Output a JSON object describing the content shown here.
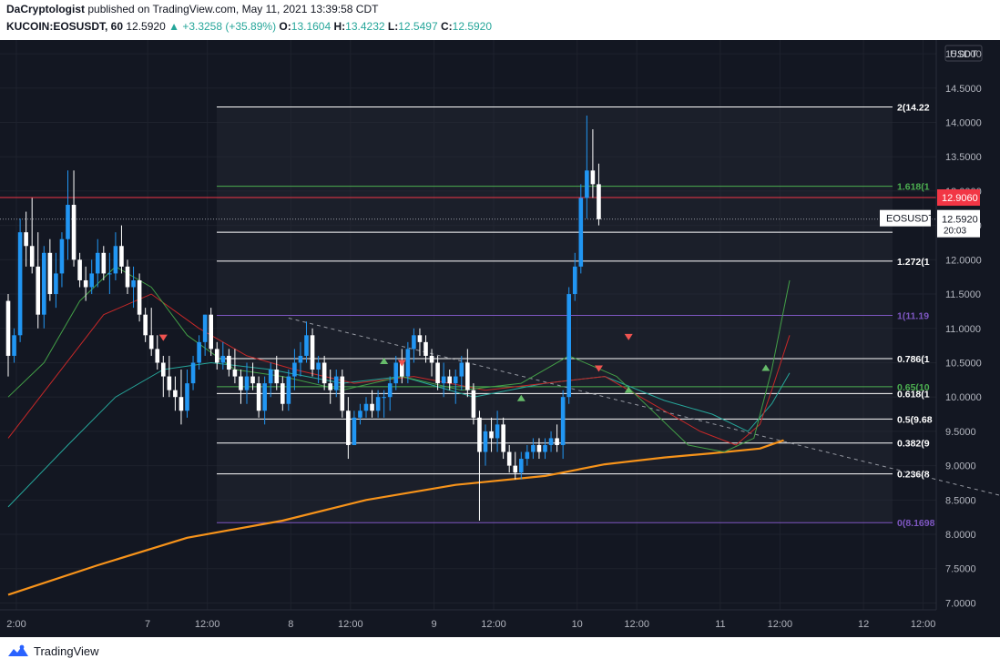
{
  "header": {
    "author": "DaCryptologist",
    "published_text": "published on TradingView.com, May 11, 2021 13:39:58 CDT",
    "symbol_line": "KUCOIN:EOSUSDT, 60",
    "last": "12.5920",
    "change": "▲ +3.3258 (+35.89%)",
    "o_label": "O:",
    "o": "13.1604",
    "h_label": "H:",
    "h": "13.4232",
    "l_label": "L:",
    "l": "12.5497",
    "c_label": "C:",
    "c": "12.5920"
  },
  "footer": {
    "brand": "TradingView"
  },
  "colors": {
    "bg": "#131722",
    "candle_up": "#2196f3",
    "candle_down": "#ffffff",
    "fib_white": "#ffffff",
    "fib_green": "#4caf50",
    "fib_purple": "#7e57c2",
    "red_line": "#f23645",
    "ma_slow": "#f7931a",
    "ma_fast": "#43a047",
    "ma_mid": "#c62828",
    "ma_teal": "#26a69a"
  },
  "chart_data": {
    "type": "candlestick",
    "symbol": "EOSUSDT",
    "axis_unit": "USDT",
    "ylim": [
      6.9,
      15.2
    ],
    "y_ticks": [
      "7.0000",
      "7.5000",
      "8.0000",
      "8.5000",
      "9.0000",
      "9.5000",
      "10.0000",
      "10.5000",
      "11.0000",
      "11.5000",
      "12.0000",
      "12.5000",
      "13.0000",
      "13.5000",
      "14.0000",
      "14.5000",
      "15.0000"
    ],
    "x_ticks": [
      {
        "label": "2:00",
        "t": 0
      },
      {
        "label": "7",
        "t": 22
      },
      {
        "label": "12:00",
        "t": 32
      },
      {
        "label": "8",
        "t": 46
      },
      {
        "label": "12:00",
        "t": 56
      },
      {
        "label": "9",
        "t": 70
      },
      {
        "label": "12:00",
        "t": 80
      },
      {
        "label": "10",
        "t": 94
      },
      {
        "label": "12:00",
        "t": 104
      },
      {
        "label": "11",
        "t": 118
      },
      {
        "label": "12:00",
        "t": 128
      },
      {
        "label": "12",
        "t": 142
      },
      {
        "label": "12:00",
        "t": 152
      }
    ],
    "candles": [
      [
        11.4,
        11.5,
        10.3,
        10.6
      ],
      [
        10.6,
        11.0,
        10.5,
        10.9
      ],
      [
        10.9,
        12.6,
        10.8,
        12.4
      ],
      [
        12.4,
        12.7,
        11.9,
        12.2
      ],
      [
        12.2,
        12.9,
        11.8,
        11.9
      ],
      [
        11.9,
        12.4,
        11.0,
        11.2
      ],
      [
        11.2,
        12.2,
        11.0,
        12.1
      ],
      [
        12.1,
        12.3,
        11.4,
        11.5
      ],
      [
        11.5,
        12.1,
        11.3,
        11.8
      ],
      [
        11.8,
        12.4,
        11.6,
        12.3
      ],
      [
        12.3,
        13.3,
        12.0,
        12.8
      ],
      [
        12.8,
        13.3,
        11.9,
        12.0
      ],
      [
        12.0,
        12.1,
        11.6,
        11.7
      ],
      [
        11.7,
        11.9,
        11.4,
        11.6
      ],
      [
        11.6,
        12.0,
        11.5,
        11.8
      ],
      [
        11.8,
        12.3,
        11.6,
        12.1
      ],
      [
        12.1,
        12.2,
        11.7,
        11.8
      ],
      [
        11.8,
        12.1,
        11.5,
        11.8
      ],
      [
        11.8,
        12.4,
        11.7,
        12.2
      ],
      [
        12.2,
        12.5,
        11.8,
        11.9
      ],
      [
        11.9,
        12.0,
        11.5,
        11.6
      ],
      [
        11.6,
        11.9,
        11.3,
        11.7
      ],
      [
        11.7,
        11.8,
        11.1,
        11.2
      ],
      [
        11.2,
        11.3,
        10.8,
        10.9
      ],
      [
        10.9,
        11.3,
        10.6,
        10.7
      ],
      [
        10.7,
        10.9,
        10.4,
        10.5
      ],
      [
        10.5,
        10.6,
        10.0,
        10.3
      ],
      [
        10.3,
        10.6,
        10.0,
        10.1
      ],
      [
        10.1,
        10.3,
        9.8,
        10.0
      ],
      [
        10.0,
        10.4,
        9.6,
        9.8
      ],
      [
        9.8,
        10.4,
        9.7,
        10.2
      ],
      [
        10.2,
        10.6,
        10.1,
        10.5
      ],
      [
        10.5,
        10.9,
        10.4,
        10.8
      ],
      [
        10.8,
        11.2,
        10.6,
        11.2
      ],
      [
        11.2,
        11.3,
        10.6,
        10.7
      ],
      [
        10.7,
        10.8,
        10.4,
        10.5
      ],
      [
        10.5,
        10.8,
        10.4,
        10.6
      ],
      [
        10.6,
        10.7,
        10.3,
        10.4
      ],
      [
        10.4,
        10.7,
        10.2,
        10.3
      ],
      [
        10.3,
        10.4,
        9.9,
        10.1
      ],
      [
        10.1,
        10.5,
        9.9,
        10.3
      ],
      [
        10.3,
        10.5,
        10.1,
        10.2
      ],
      [
        10.2,
        10.3,
        9.7,
        9.8
      ],
      [
        9.8,
        10.3,
        9.6,
        10.2
      ],
      [
        10.2,
        10.5,
        10.0,
        10.4
      ],
      [
        10.4,
        10.6,
        10.1,
        10.2
      ],
      [
        10.2,
        10.3,
        9.8,
        9.9
      ],
      [
        9.9,
        10.4,
        9.8,
        10.3
      ],
      [
        10.3,
        10.7,
        10.1,
        10.5
      ],
      [
        10.5,
        10.8,
        10.3,
        10.6
      ],
      [
        10.6,
        11.1,
        10.5,
        10.9
      ],
      [
        10.9,
        11.0,
        10.3,
        10.4
      ],
      [
        10.4,
        10.6,
        10.2,
        10.5
      ],
      [
        10.5,
        10.6,
        10.1,
        10.2
      ],
      [
        10.2,
        10.4,
        9.9,
        10.1
      ],
      [
        10.1,
        10.4,
        10.0,
        10.3
      ],
      [
        10.3,
        10.4,
        9.7,
        9.8
      ],
      [
        9.8,
        10.0,
        9.1,
        9.3
      ],
      [
        9.3,
        9.8,
        9.3,
        9.7
      ],
      [
        9.7,
        9.9,
        9.6,
        9.8
      ],
      [
        9.8,
        10.0,
        9.7,
        9.9
      ],
      [
        9.9,
        10.1,
        9.7,
        9.8
      ],
      [
        9.8,
        10.1,
        9.7,
        10.0
      ],
      [
        10.0,
        10.1,
        9.7,
        10.0
      ],
      [
        10.0,
        10.3,
        9.8,
        10.2
      ],
      [
        10.2,
        10.6,
        10.1,
        10.5
      ],
      [
        10.5,
        10.7,
        10.2,
        10.3
      ],
      [
        10.3,
        10.8,
        10.2,
        10.7
      ],
      [
        10.7,
        11.0,
        10.5,
        10.9
      ],
      [
        10.9,
        11.0,
        10.6,
        10.8
      ],
      [
        10.8,
        10.9,
        10.5,
        10.6
      ],
      [
        10.6,
        10.7,
        10.3,
        10.5
      ],
      [
        10.5,
        10.6,
        10.1,
        10.2
      ],
      [
        10.2,
        10.5,
        10.0,
        10.3
      ],
      [
        10.3,
        10.4,
        10.1,
        10.2
      ],
      [
        10.2,
        10.4,
        9.9,
        10.3
      ],
      [
        10.3,
        10.6,
        10.1,
        10.5
      ],
      [
        10.5,
        10.7,
        10.0,
        10.1
      ],
      [
        10.1,
        10.2,
        9.6,
        9.7
      ],
      [
        9.7,
        9.8,
        8.2,
        9.2
      ],
      [
        9.2,
        9.6,
        9.0,
        9.5
      ],
      [
        9.5,
        9.7,
        9.2,
        9.4
      ],
      [
        9.4,
        9.8,
        9.2,
        9.6
      ],
      [
        9.6,
        9.7,
        9.1,
        9.2
      ],
      [
        9.2,
        9.3,
        8.9,
        9.0
      ],
      [
        9.0,
        9.2,
        8.8,
        8.9
      ],
      [
        8.9,
        9.2,
        8.8,
        9.1
      ],
      [
        9.1,
        9.3,
        9.0,
        9.2
      ],
      [
        9.2,
        9.4,
        9.1,
        9.3
      ],
      [
        9.3,
        9.4,
        9.1,
        9.2
      ],
      [
        9.2,
        9.4,
        9.1,
        9.3
      ],
      [
        9.3,
        9.5,
        9.2,
        9.4
      ],
      [
        9.4,
        9.6,
        9.2,
        9.3
      ],
      [
        9.3,
        10.1,
        9.1,
        10.0
      ],
      [
        10.0,
        11.6,
        9.9,
        11.5
      ],
      [
        11.5,
        12.1,
        11.4,
        11.9
      ],
      [
        11.9,
        13.1,
        11.8,
        12.9
      ],
      [
        12.9,
        14.1,
        12.6,
        13.3
      ],
      [
        13.3,
        13.9,
        12.9,
        13.1
      ],
      [
        13.1,
        13.4,
        12.5,
        12.59
      ]
    ],
    "horizontal_line": {
      "price": 12.906,
      "label": "12.9060"
    },
    "last_price": {
      "price": 12.592,
      "label": "12.5920",
      "countdown": "20:03",
      "symbol_label": "EOSUSDT"
    },
    "fib_levels": [
      {
        "label": "2(14.22",
        "price": 14.225,
        "color": "white"
      },
      {
        "label": "1.618(1",
        "price": 13.07,
        "color": "green"
      },
      {
        "label": "",
        "price": 12.4,
        "color": "white"
      },
      {
        "label": "1.272(1",
        "price": 11.98,
        "color": "white"
      },
      {
        "label": "1(11.19",
        "price": 11.19,
        "color": "purple"
      },
      {
        "label": "0.786(1",
        "price": 10.56,
        "color": "white"
      },
      {
        "label": "0.65(10",
        "price": 10.15,
        "color": "green"
      },
      {
        "label": "0.618(1",
        "price": 10.05,
        "color": "white"
      },
      {
        "label": "0.5(9.68",
        "price": 9.68,
        "color": "white"
      },
      {
        "label": "0.382(9",
        "price": 9.33,
        "color": "white"
      },
      {
        "label": "0.236(8",
        "price": 8.88,
        "color": "white"
      },
      {
        "label": "0(8.1698",
        "price": 8.17,
        "color": "purple"
      }
    ],
    "trendline": {
      "from": {
        "t": 47,
        "price": 11.15
      },
      "to": {
        "t": 186,
        "price": 8.17
      }
    },
    "ma_slow": [
      [
        0,
        7.12
      ],
      [
        15,
        7.55
      ],
      [
        30,
        7.95
      ],
      [
        46,
        8.2
      ],
      [
        60,
        8.5
      ],
      [
        75,
        8.72
      ],
      [
        90,
        8.85
      ],
      [
        100,
        9.02
      ],
      [
        110,
        9.12
      ],
      [
        118,
        9.18
      ],
      [
        126,
        9.25
      ],
      [
        130,
        9.37
      ]
    ],
    "ma_fast": [
      [
        0,
        10.0
      ],
      [
        6,
        10.5
      ],
      [
        12,
        11.4
      ],
      [
        18,
        11.9
      ],
      [
        24,
        11.6
      ],
      [
        30,
        10.9
      ],
      [
        38,
        10.4
      ],
      [
        46,
        10.3
      ],
      [
        56,
        10.1
      ],
      [
        66,
        10.3
      ],
      [
        76,
        10.1
      ],
      [
        86,
        10.2
      ],
      [
        94,
        10.6
      ],
      [
        102,
        10.3
      ],
      [
        108,
        9.8
      ],
      [
        114,
        9.3
      ],
      [
        120,
        9.2
      ],
      [
        125,
        9.4
      ],
      [
        128,
        10.4
      ],
      [
        131,
        11.7
      ]
    ],
    "ma_mid": [
      [
        0,
        9.4
      ],
      [
        8,
        10.3
      ],
      [
        16,
        11.2
      ],
      [
        24,
        11.5
      ],
      [
        32,
        11.0
      ],
      [
        40,
        10.6
      ],
      [
        48,
        10.4
      ],
      [
        58,
        10.2
      ],
      [
        68,
        10.3
      ],
      [
        80,
        10.1
      ],
      [
        90,
        10.2
      ],
      [
        100,
        10.3
      ],
      [
        108,
        9.9
      ],
      [
        116,
        9.5
      ],
      [
        122,
        9.3
      ],
      [
        126,
        9.6
      ],
      [
        128,
        10.1
      ],
      [
        131,
        10.9
      ]
    ],
    "ma_teal": [
      [
        0,
        8.4
      ],
      [
        10,
        9.3
      ],
      [
        18,
        10.0
      ],
      [
        26,
        10.4
      ],
      [
        34,
        10.5
      ],
      [
        44,
        10.4
      ],
      [
        56,
        10.2
      ],
      [
        66,
        10.3
      ],
      [
        78,
        10.0
      ],
      [
        90,
        10.2
      ],
      [
        100,
        10.3
      ],
      [
        110,
        9.95
      ],
      [
        118,
        9.75
      ],
      [
        124,
        9.5
      ],
      [
        128,
        9.9
      ],
      [
        131,
        10.35
      ]
    ],
    "arrows_down": [
      [
        26,
        10.87
      ],
      [
        66,
        10.5
      ],
      [
        99,
        10.42
      ],
      [
        104,
        10.88
      ]
    ],
    "arrows_up": [
      [
        63,
        10.52
      ],
      [
        86,
        9.98
      ],
      [
        104,
        10.1
      ],
      [
        127,
        10.42
      ]
    ]
  }
}
